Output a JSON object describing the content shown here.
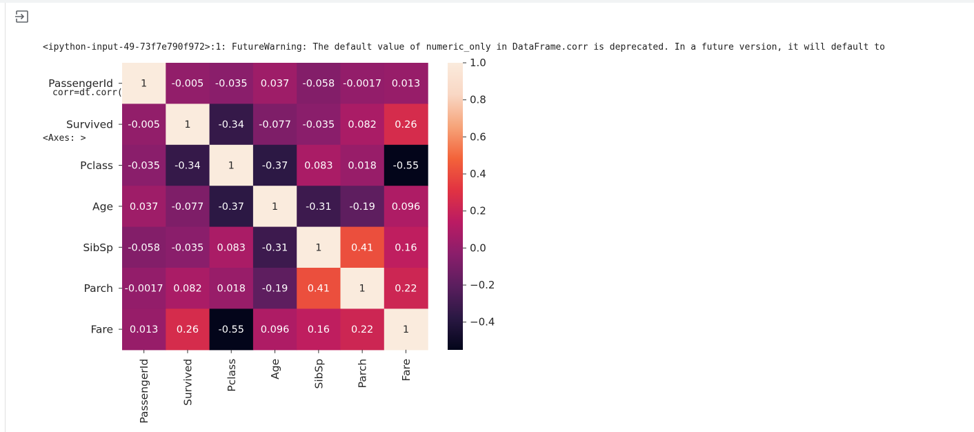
{
  "output": {
    "warning_line": "<ipython-input-49-73f7e790f972>:1: FutureWarning: The default value of numeric_only in DataFrame.corr is deprecated. In a future version, it will default to",
    "code_line": "corr=dt.corr()",
    "repr_line": "<Axes: >",
    "icon": "output-arrow-icon"
  },
  "chart_data": {
    "type": "heatmap",
    "title": "",
    "xlabel": "",
    "ylabel": "",
    "labels": [
      "PassengerId",
      "Survived",
      "Pclass",
      "Age",
      "SibSp",
      "Parch",
      "Fare"
    ],
    "cells": [
      [
        "1",
        "-0.005",
        "-0.035",
        "0.037",
        "-0.058",
        "-0.0017",
        "0.013"
      ],
      [
        "-0.005",
        "1",
        "-0.34",
        "-0.077",
        "-0.035",
        "0.082",
        "0.26"
      ],
      [
        "-0.035",
        "-0.34",
        "1",
        "-0.37",
        "0.083",
        "0.018",
        "-0.55"
      ],
      [
        "0.037",
        "-0.077",
        "-0.37",
        "1",
        "-0.31",
        "-0.19",
        "0.096"
      ],
      [
        "-0.058",
        "-0.035",
        "0.083",
        "-0.31",
        "1",
        "0.41",
        "0.16"
      ],
      [
        "-0.0017",
        "0.082",
        "0.018",
        "-0.19",
        "0.41",
        "1",
        "0.22"
      ],
      [
        "0.013",
        "0.26",
        "-0.55",
        "0.096",
        "0.16",
        "0.22",
        "1"
      ]
    ],
    "colorbar": {
      "vmin": -0.55,
      "vmax": 1.0,
      "ticks": [
        1.0,
        0.8,
        0.6,
        0.4,
        0.2,
        0.0,
        -0.2,
        -0.4
      ],
      "tick_labels": [
        "1.0",
        "0.8",
        "0.6",
        "0.4",
        "0.2",
        "0.0",
        "−0.2",
        "−0.4"
      ],
      "colormap": "rocket",
      "colormap_stops": [
        "#03051a",
        "#2a1843",
        "#5a1e5e",
        "#8a1e6b",
        "#ba1b63",
        "#e13342",
        "#f3633a",
        "#f6a47a",
        "#f9d7c4",
        "#faebdd"
      ]
    },
    "annot_colors": {
      "dark": "#262626",
      "light": "#ffffff"
    },
    "grid": false
  }
}
